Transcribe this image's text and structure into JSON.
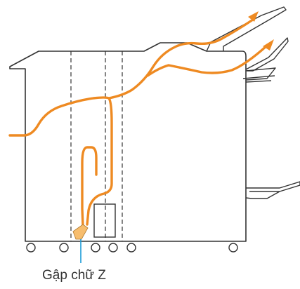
{
  "callout": {
    "label": "Gập chữ Z"
  },
  "colors": {
    "outline": "#333333",
    "paper_path": "#ee8a22",
    "callout_line": "#1a9bd7",
    "z_fold_marker": "#f7bd6d",
    "background": "#ffffff"
  },
  "icons": {
    "z_fold_unit": "z-fold-unit-icon",
    "output_arrow": "arrow-icon"
  }
}
